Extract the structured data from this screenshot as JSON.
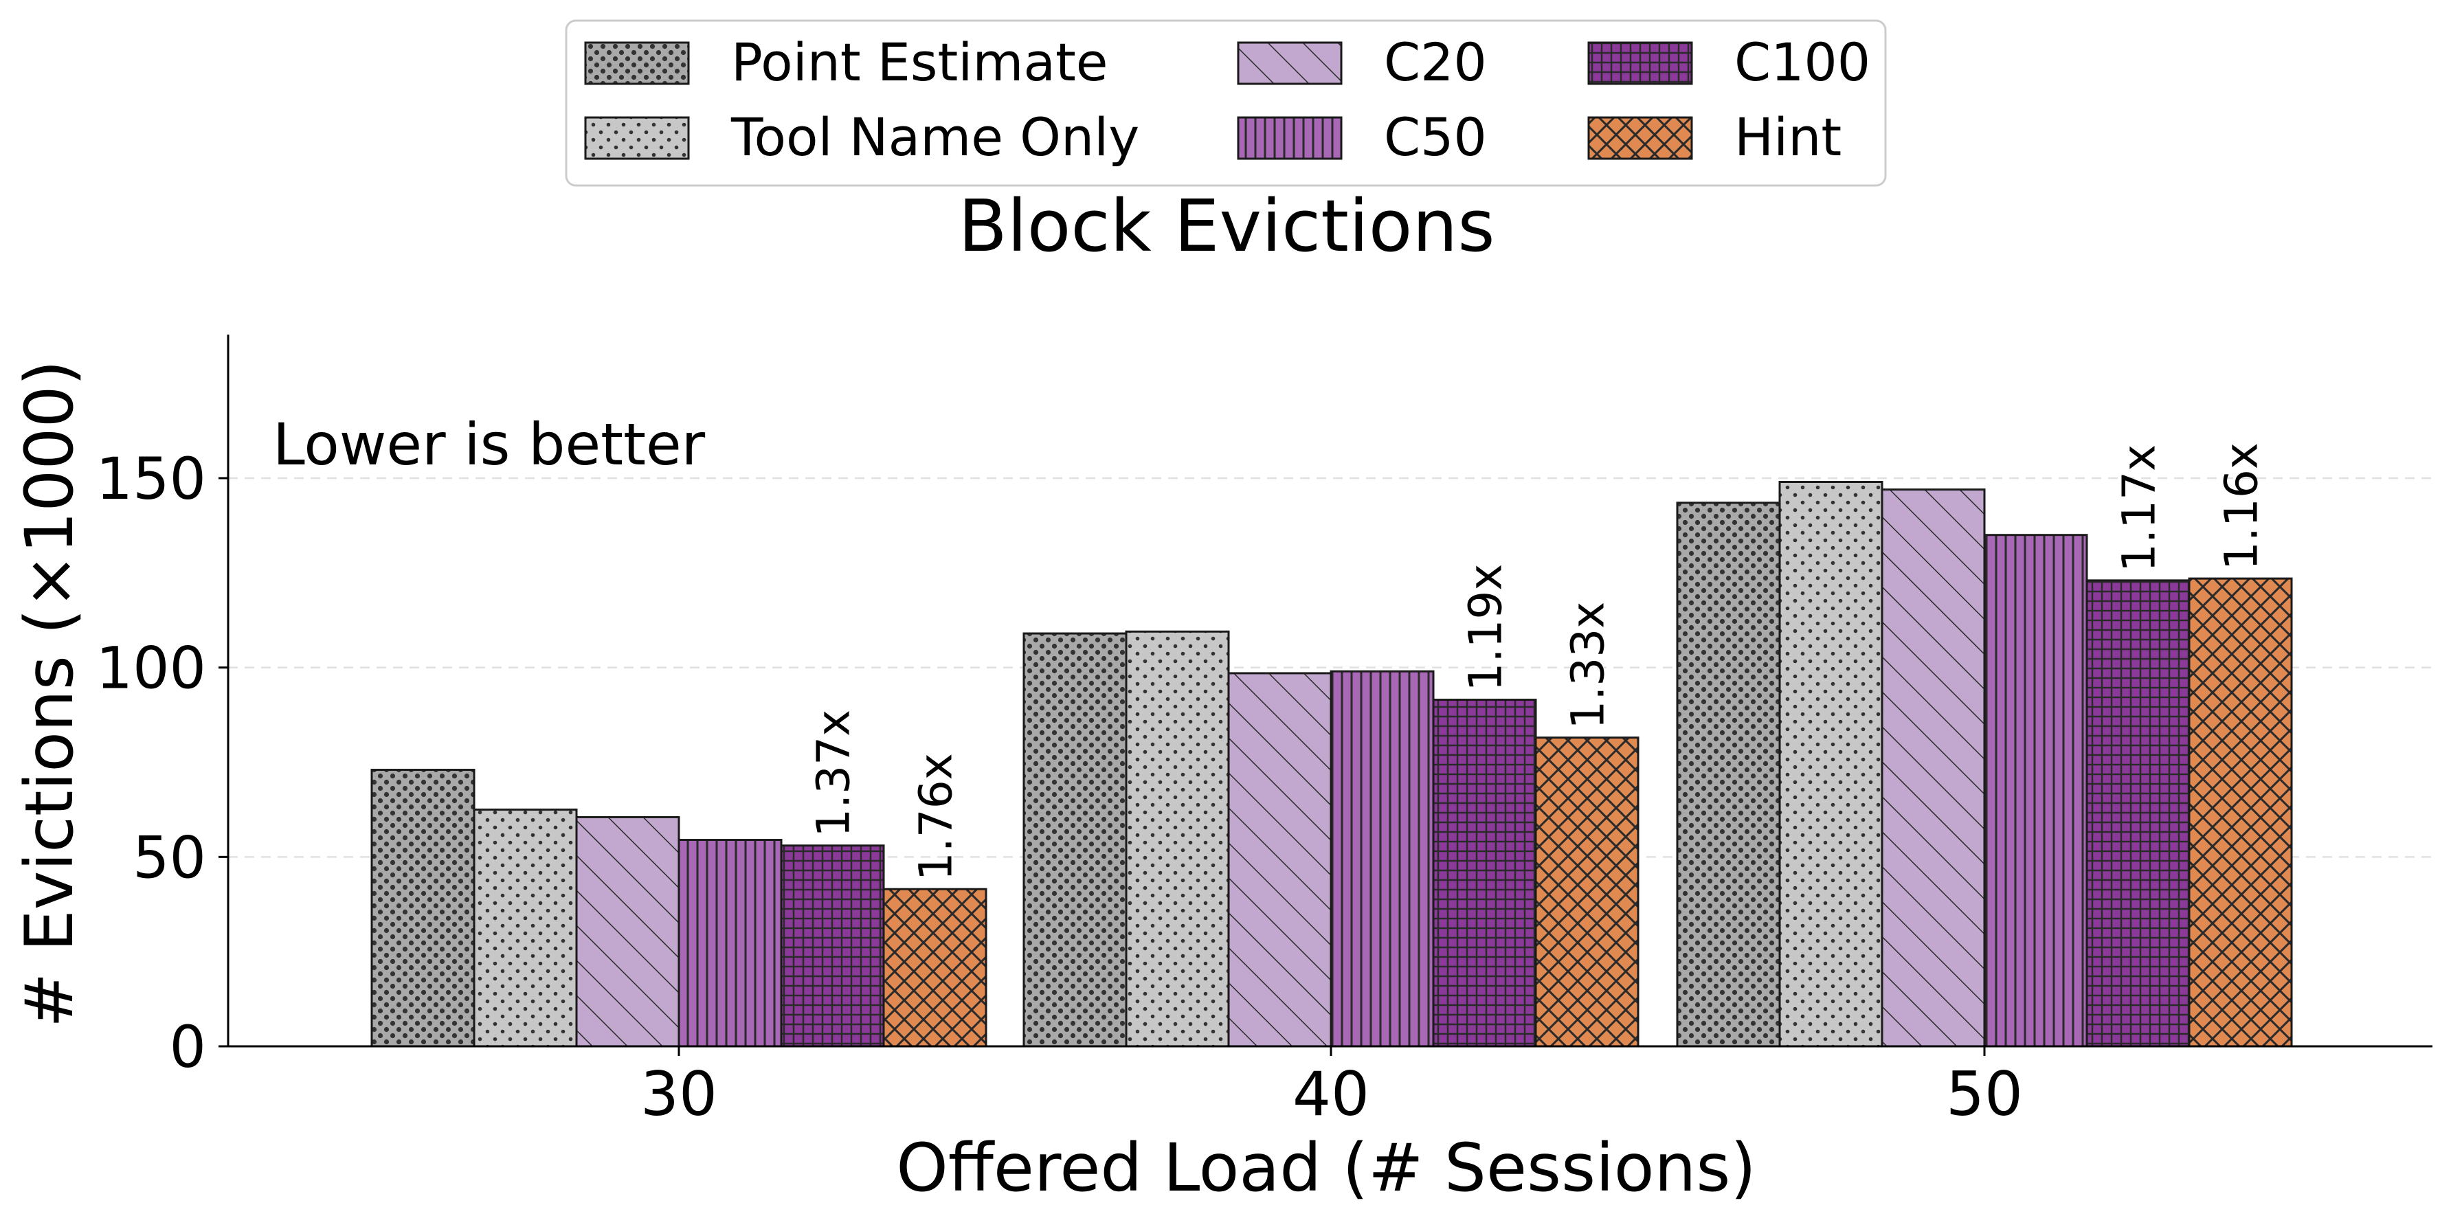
{
  "chart_data": {
    "type": "bar",
    "title": "Block Evictions",
    "xlabel": "Offered Load (# Sessions)",
    "ylabel": "# Evictions (×1000)",
    "annotation": "Lower is better",
    "categories": [
      "30",
      "40",
      "50"
    ],
    "yticks": [
      "0",
      "50",
      "100",
      "150"
    ],
    "ylim": [
      0,
      187
    ],
    "grid": "horizontal dashed at 50, 100, 150",
    "legend_placement": "top-center, 3 columns",
    "series": [
      {
        "name": "Point Estimate",
        "values": [
          73,
          109,
          143.5
        ],
        "color": "#a9a9a9",
        "pattern": "dense-dots"
      },
      {
        "name": "Tool Name Only",
        "values": [
          62.5,
          109.5,
          149
        ],
        "color": "#c7c7c7",
        "pattern": "sparse-dots"
      },
      {
        "name": "C20",
        "values": [
          60.5,
          98.5,
          147
        ],
        "color": "#c2a8cf",
        "pattern": "diagonal-lines"
      },
      {
        "name": "C50",
        "values": [
          54.5,
          99,
          135
        ],
        "color": "#a868b6",
        "pattern": "vertical-lines"
      },
      {
        "name": "C100",
        "values": [
          53,
          91.5,
          123
        ],
        "color": "#8b3a9a",
        "pattern": "grid"
      },
      {
        "name": "Hint",
        "values": [
          41.5,
          81.5,
          123.5
        ],
        "color": "#e08a52",
        "pattern": "crosshatch"
      }
    ],
    "bar_labels": [
      {
        "series": "C100",
        "category": "30",
        "text": "1.37x"
      },
      {
        "series": "Hint",
        "category": "30",
        "text": "1.76x"
      },
      {
        "series": "C100",
        "category": "40",
        "text": "1.19x"
      },
      {
        "series": "Hint",
        "category": "40",
        "text": "1.33x"
      },
      {
        "series": "C100",
        "category": "50",
        "text": "1.17x"
      },
      {
        "series": "Hint",
        "category": "50",
        "text": "1.16x"
      }
    ]
  }
}
